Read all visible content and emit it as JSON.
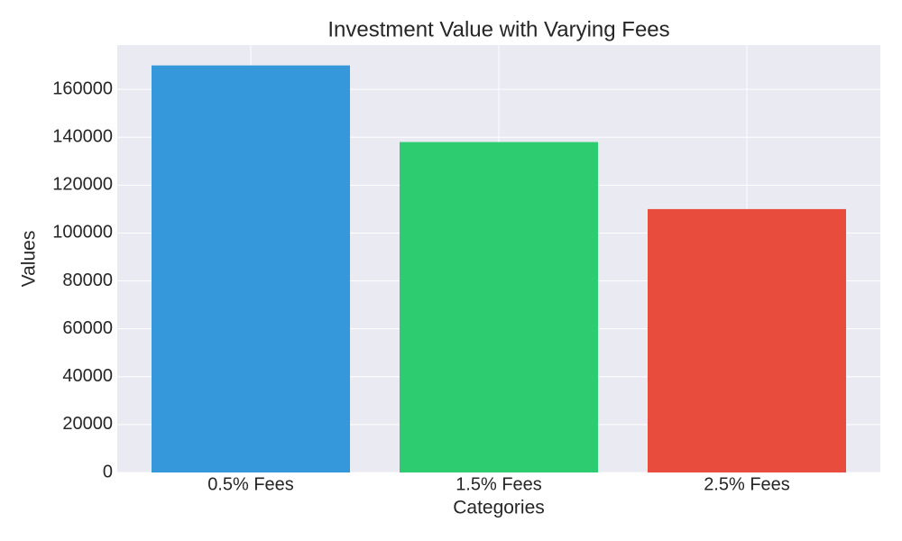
{
  "chart_data": {
    "type": "bar",
    "title": "Investment Value with Varying Fees",
    "x_label": "Categories",
    "y_label": "Values",
    "categories": [
      "0.5% Fees",
      "1.5% Fees",
      "2.5% Fees"
    ],
    "values": [
      170000,
      138000,
      110000
    ],
    "colors": [
      "#3498db",
      "#2ecc71",
      "#e74c3c"
    ],
    "ylim": [
      0,
      178500
    ],
    "yticks": [
      0,
      20000,
      40000,
      60000,
      80000,
      100000,
      120000,
      140000,
      160000
    ],
    "grid": true
  }
}
